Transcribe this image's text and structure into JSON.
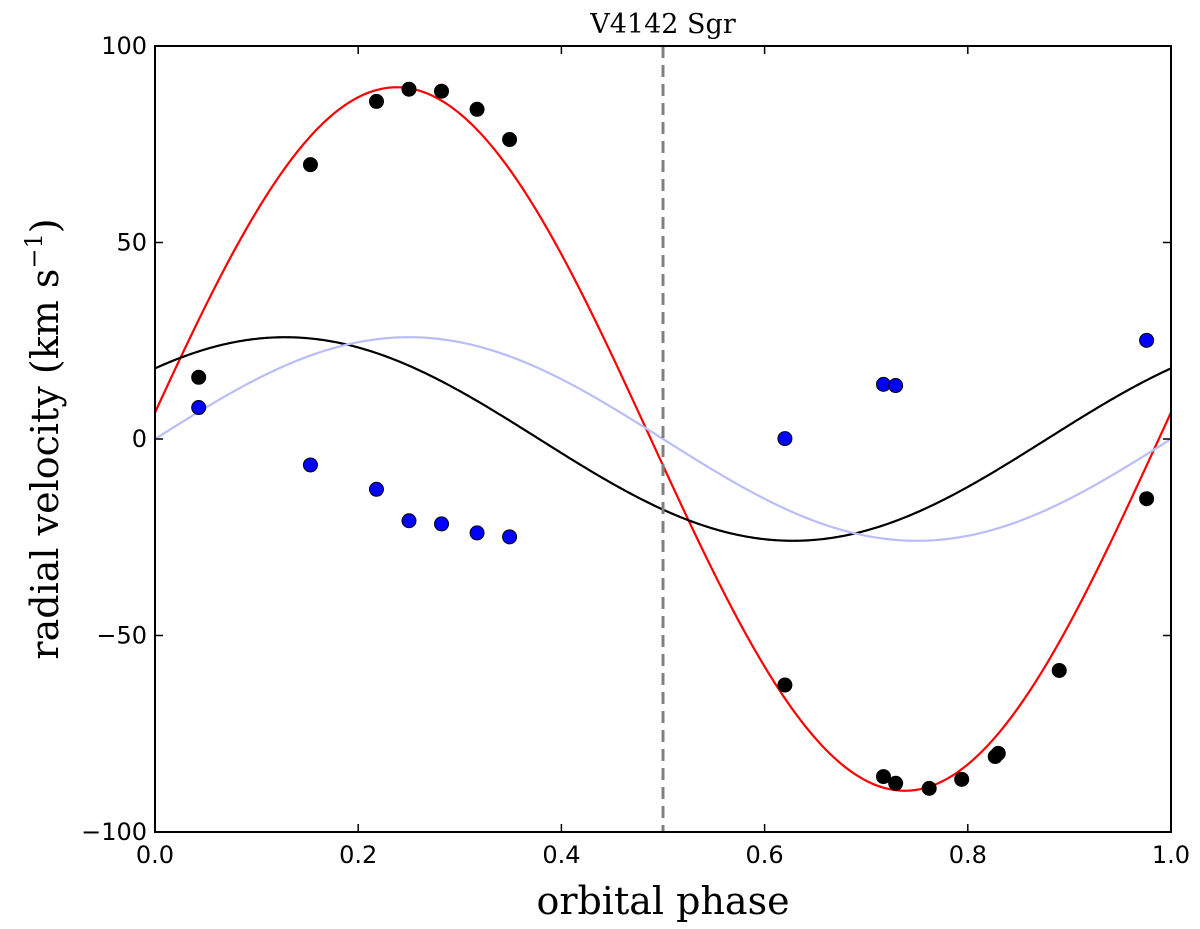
{
  "chart_data": {
    "type": "scatter",
    "title": "V4142 Sgr",
    "xlabel": "orbital phase",
    "ylabel_main": "radial velocity (km s",
    "ylabel_exp": "−1",
    "ylabel_close": ")",
    "xlim": [
      0.0,
      1.0
    ],
    "ylim": [
      -100,
      100
    ],
    "x_ticks": [
      0.0,
      0.2,
      0.4,
      0.6,
      0.8,
      1.0
    ],
    "x_tick_labels": [
      "0.0",
      "0.2",
      "0.4",
      "0.6",
      "0.8",
      "1.0"
    ],
    "y_ticks": [
      100,
      50,
      0,
      -50,
      -100
    ],
    "y_tick_labels": [
      "100",
      "50",
      "0",
      "−50",
      "−100"
    ],
    "vline": {
      "x": 0.5,
      "color": "#808080",
      "style": "dashed"
    },
    "series": [
      {
        "name": "component-1-fit",
        "kind": "line",
        "color": "#ff0000",
        "model": {
          "gamma": 0,
          "K": 89.5,
          "phase_offset": 0.012
        }
      },
      {
        "name": "component-2-fit",
        "kind": "line",
        "color": "#000000",
        "model": {
          "gamma": 0,
          "K": 25.9,
          "phase_offset": 0.122
        }
      },
      {
        "name": "reference-curve",
        "kind": "line",
        "color": "#b9bdf8",
        "model": {
          "gamma": 0,
          "K": 25.9,
          "phase_offset": 0.0
        }
      },
      {
        "name": "component-1-points",
        "kind": "points",
        "color": "#000000",
        "x": [
          0.043,
          0.153,
          0.218,
          0.25,
          0.282,
          0.317,
          0.349,
          0.62,
          0.717,
          0.729,
          0.762,
          0.794,
          0.827,
          0.83,
          0.89,
          0.976
        ],
        "y": [
          15.7,
          69.8,
          85.9,
          89.0,
          88.5,
          83.9,
          76.2,
          -62.6,
          -85.9,
          -87.6,
          -88.9,
          -86.6,
          -80.8,
          -80.0,
          -58.9,
          -15.2
        ]
      },
      {
        "name": "component-2-points",
        "kind": "points",
        "color": "#0000ff",
        "x": [
          0.043,
          0.153,
          0.218,
          0.25,
          0.282,
          0.317,
          0.349,
          0.62,
          0.717,
          0.729,
          0.976
        ],
        "y": [
          8.0,
          -6.6,
          -12.8,
          -20.8,
          -21.6,
          -23.9,
          -24.9,
          0.1,
          13.9,
          13.6,
          25.1
        ]
      }
    ]
  }
}
